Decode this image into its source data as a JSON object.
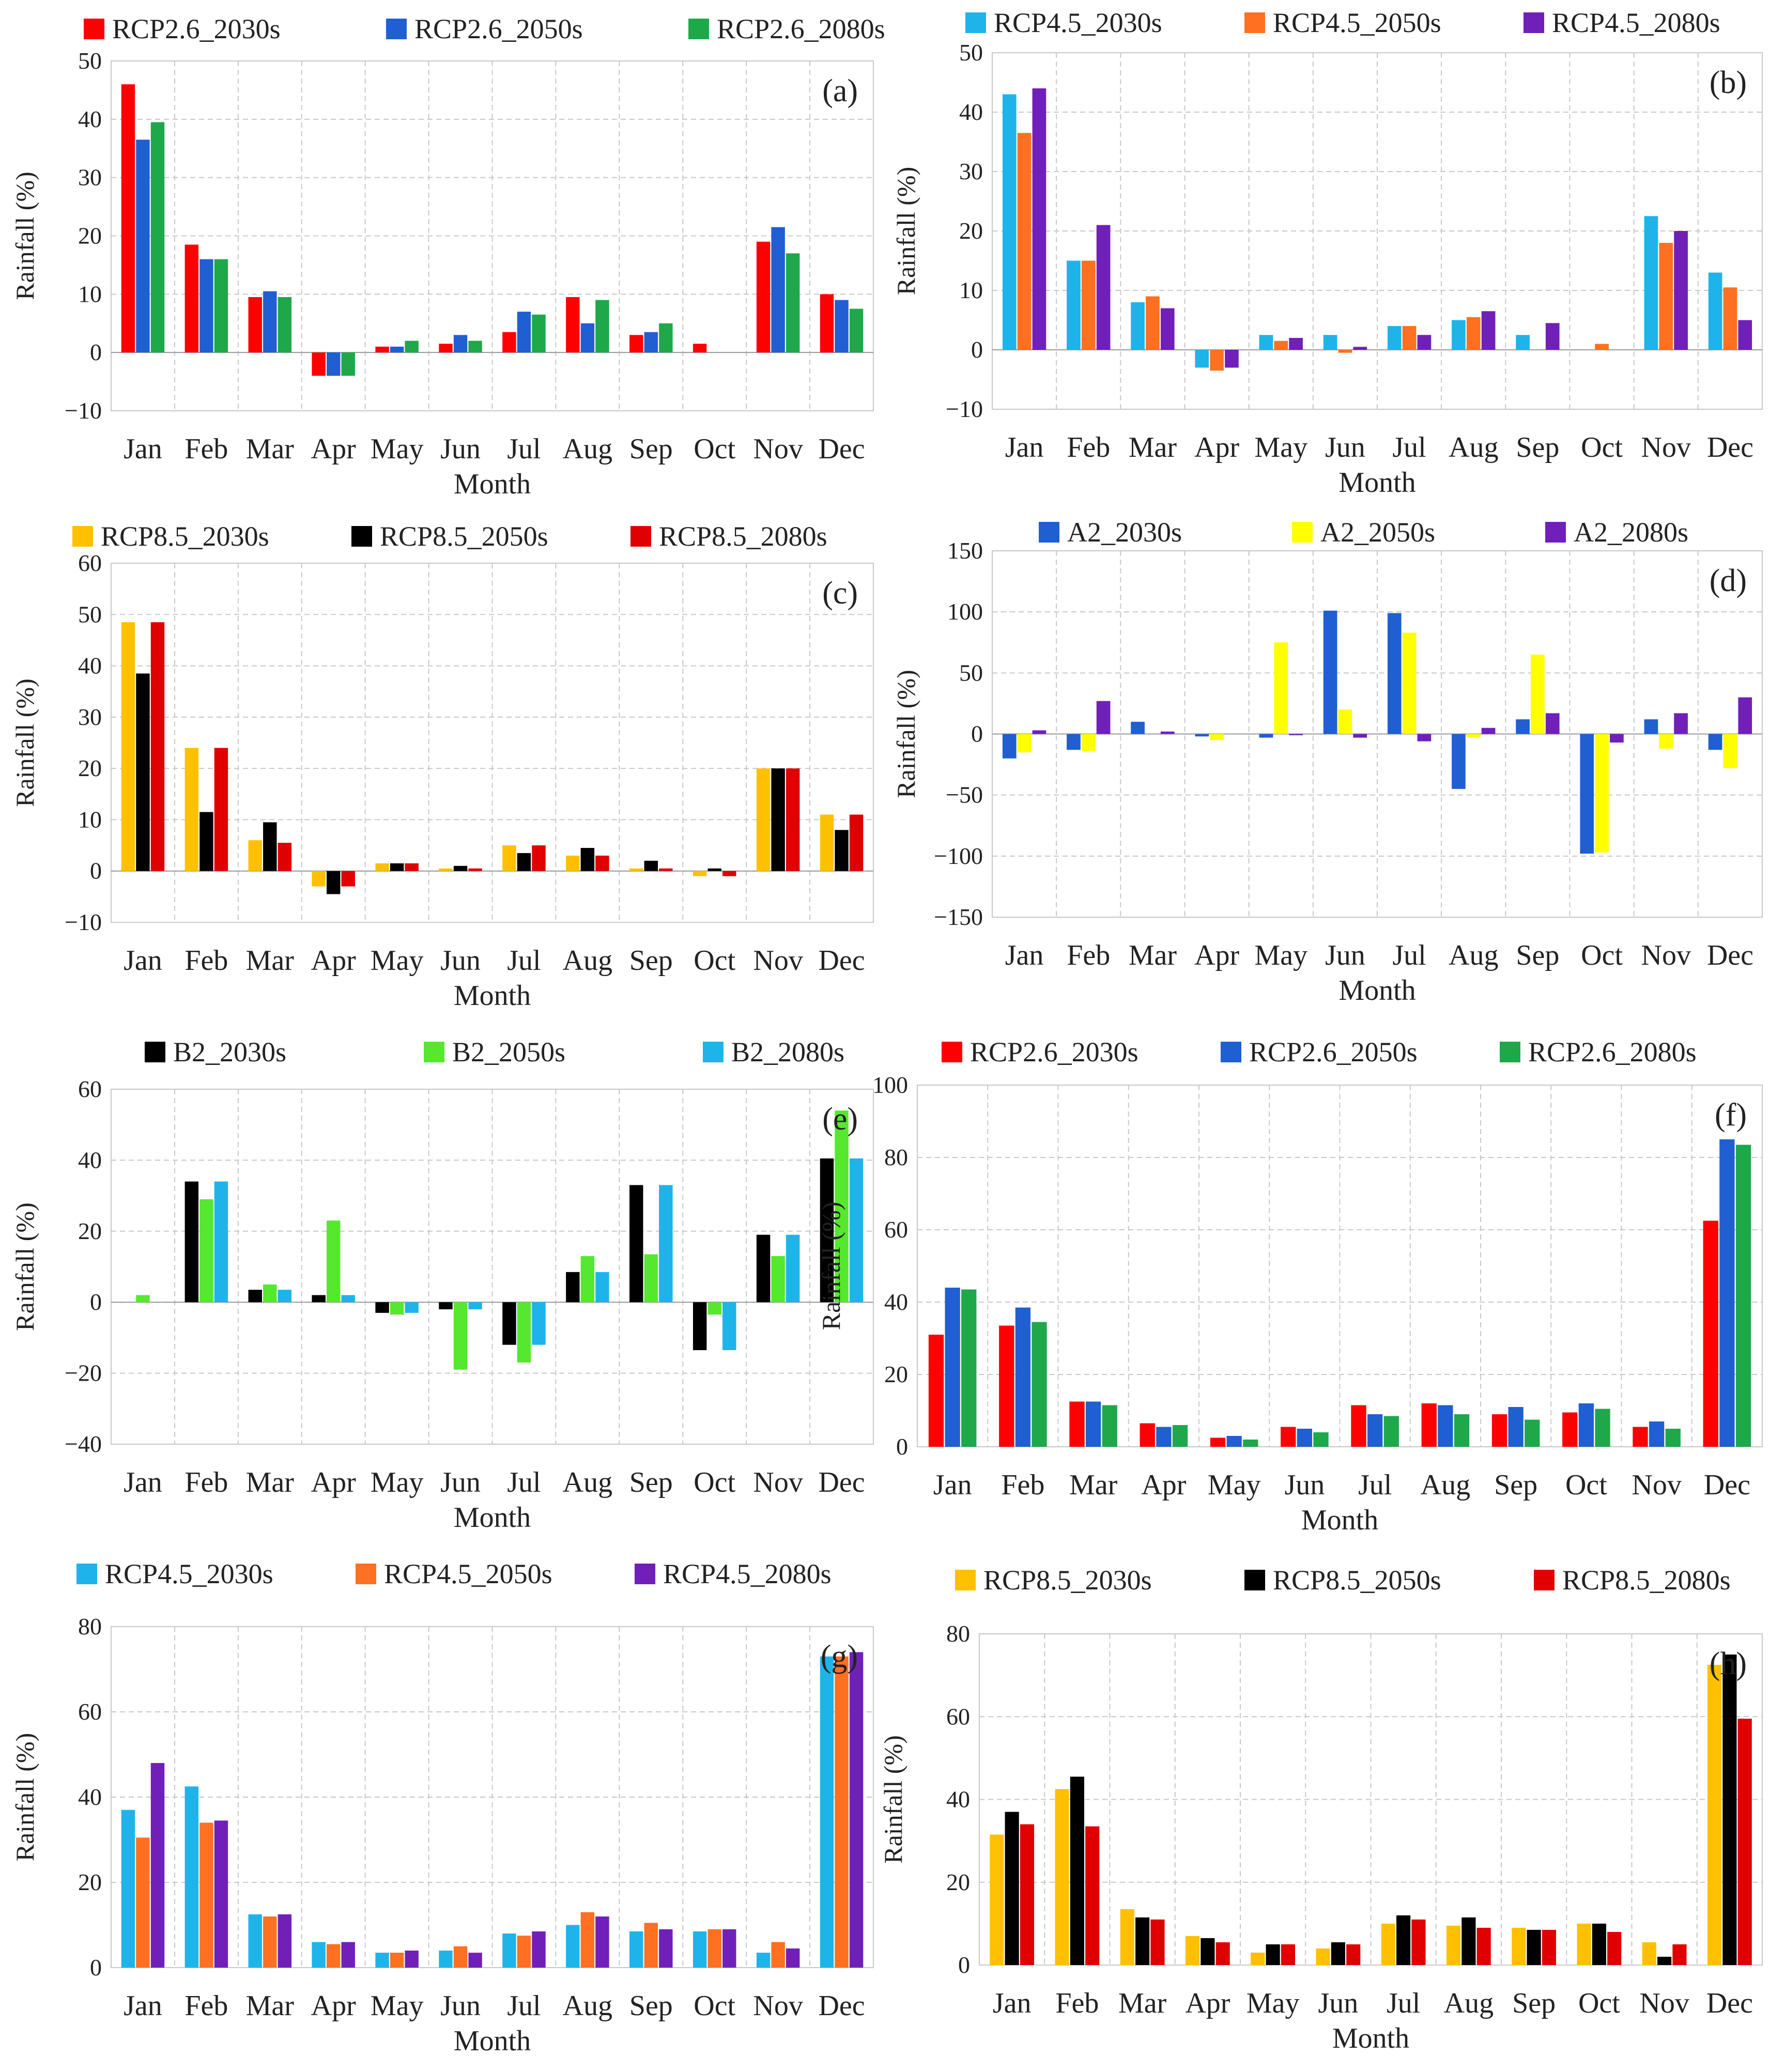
{
  "figure": {
    "x_label": "Month",
    "y_label": "Rainfall (%)"
  },
  "chart_data": [
    {
      "type": "bar",
      "panel": "(a)",
      "categories": [
        "Jan",
        "Feb",
        "Mar",
        "Apr",
        "May",
        "Jun",
        "Jul",
        "Aug",
        "Sep",
        "Oct",
        "Nov",
        "Dec"
      ],
      "ylim": [
        -10,
        50
      ],
      "yticks": [
        -10,
        0,
        10,
        20,
        30,
        40,
        50
      ],
      "ytick_labels": [
        "−10",
        "0",
        "10",
        "20",
        "30",
        "40",
        "50"
      ],
      "xlabel": "Month",
      "ylabel": "Rainfall (%)",
      "grid": true,
      "legend": "top",
      "series": [
        {
          "name": "RCP2.6_2030s",
          "color": "#ff0000",
          "values": [
            46,
            18.5,
            9.5,
            -4,
            1,
            1.5,
            3.5,
            9.5,
            3,
            1.5,
            19,
            10
          ]
        },
        {
          "name": "RCP2.6_2050s",
          "color": "#1f5fd1",
          "values": [
            36.5,
            16,
            10.5,
            -4,
            1,
            3,
            7,
            5,
            3.5,
            0,
            21.5,
            9
          ]
        },
        {
          "name": "RCP2.6_2080s",
          "color": "#1ea84a",
          "values": [
            39.5,
            16,
            9.5,
            -4,
            2,
            2,
            6.5,
            9,
            5,
            0,
            17,
            7.5
          ]
        }
      ]
    },
    {
      "type": "bar",
      "panel": "(b)",
      "categories": [
        "Jan",
        "Feb",
        "Mar",
        "Apr",
        "May",
        "Jun",
        "Jul",
        "Aug",
        "Sep",
        "Oct",
        "Nov",
        "Dec"
      ],
      "ylim": [
        -10,
        50
      ],
      "yticks": [
        -10,
        0,
        10,
        20,
        30,
        40,
        50
      ],
      "ytick_labels": [
        "−10",
        "0",
        "10",
        "20",
        "30",
        "40",
        "50"
      ],
      "xlabel": "Month",
      "ylabel": "Rainfall (%)",
      "grid": true,
      "legend": "top",
      "series": [
        {
          "name": "RCP4.5_2030s",
          "color": "#1eb4ea",
          "values": [
            43,
            15,
            8,
            -3,
            2.5,
            2.5,
            4,
            5,
            2.5,
            0,
            22.5,
            13
          ]
        },
        {
          "name": "RCP4.5_2050s",
          "color": "#ff7020",
          "values": [
            36.5,
            15,
            9,
            -3.5,
            1.5,
            -0.5,
            4,
            5.5,
            0,
            1,
            18,
            10.5
          ]
        },
        {
          "name": "RCP4.5_2080s",
          "color": "#7020b8",
          "values": [
            44,
            21,
            7,
            -3,
            2,
            0.5,
            2.5,
            6.5,
            4.5,
            0,
            20,
            5
          ]
        }
      ]
    },
    {
      "type": "bar",
      "panel": "(c)",
      "categories": [
        "Jan",
        "Feb",
        "Mar",
        "Apr",
        "May",
        "Jun",
        "Jul",
        "Aug",
        "Sep",
        "Oct",
        "Nov",
        "Dec"
      ],
      "ylim": [
        -10,
        60
      ],
      "yticks": [
        -10,
        0,
        10,
        20,
        30,
        40,
        50,
        60
      ],
      "ytick_labels": [
        "−10",
        "0",
        "10",
        "20",
        "30",
        "40",
        "50",
        "60"
      ],
      "xlabel": "Month",
      "ylabel": "Rainfall (%)",
      "grid": true,
      "legend": "top",
      "series": [
        {
          "name": "RCP8.5_2030s",
          "color": "#ffc000",
          "values": [
            48.5,
            24,
            6,
            -3,
            1.5,
            0.5,
            5,
            3,
            0.5,
            -1,
            20,
            11
          ]
        },
        {
          "name": "RCP8.5_2050s",
          "color": "#000000",
          "values": [
            38.5,
            11.5,
            9.5,
            -4.5,
            1.5,
            1,
            3.5,
            4.5,
            2,
            0.5,
            20,
            8
          ]
        },
        {
          "name": "RCP8.5_2080s",
          "color": "#e00000",
          "values": [
            48.5,
            24,
            5.5,
            -3,
            1.5,
            0.5,
            5,
            3,
            0.5,
            -1,
            20,
            11
          ]
        }
      ]
    },
    {
      "type": "bar",
      "panel": "(d)",
      "categories": [
        "Jan",
        "Feb",
        "Mar",
        "Apr",
        "May",
        "Jun",
        "Jul",
        "Aug",
        "Sep",
        "Oct",
        "Nov",
        "Dec"
      ],
      "ylim": [
        -150,
        150
      ],
      "yticks": [
        -150,
        -100,
        -50,
        0,
        50,
        100,
        150
      ],
      "ytick_labels": [
        "−150",
        "−100",
        "−50",
        "0",
        "50",
        "100",
        "150"
      ],
      "xlabel": "Month",
      "ylabel": "Rainfall (%)",
      "grid": true,
      "legend": "top",
      "series": [
        {
          "name": "A2_2030s",
          "color": "#1f5fd1",
          "values": [
            -20,
            -13,
            10,
            -2,
            -3,
            101,
            99,
            -45,
            12,
            -98,
            12,
            -13
          ]
        },
        {
          "name": "A2_2050s",
          "color": "#ffff00",
          "values": [
            -15,
            -14,
            0,
            -5,
            75,
            20,
            83,
            -3,
            65,
            -97,
            -12,
            -28
          ]
        },
        {
          "name": "A2_2080s",
          "color": "#7020b8",
          "values": [
            3,
            27,
            2,
            0,
            -1,
            -3,
            -6,
            5,
            17,
            -7,
            17,
            30
          ]
        }
      ]
    },
    {
      "type": "bar",
      "panel": "(e)",
      "categories": [
        "Jan",
        "Feb",
        "Mar",
        "Apr",
        "May",
        "Jun",
        "Jul",
        "Aug",
        "Sep",
        "Oct",
        "Nov",
        "Dec"
      ],
      "ylim": [
        -40,
        60
      ],
      "yticks": [
        -40,
        -20,
        0,
        20,
        40,
        60
      ],
      "ytick_labels": [
        "−40",
        "−20",
        "0",
        "20",
        "40",
        "60"
      ],
      "xlabel": "Month",
      "ylabel": "Rainfall (%)",
      "grid": true,
      "legend": "top",
      "series": [
        {
          "name": "B2_2030s",
          "color": "#000000",
          "values": [
            0,
            34,
            3.5,
            2,
            -3,
            -2,
            -12,
            8.5,
            33,
            -13.5,
            19,
            40.5
          ]
        },
        {
          "name": "B2_2050s",
          "color": "#55e82e",
          "values": [
            2,
            29,
            5,
            23,
            -3.5,
            -19,
            -17,
            13,
            13.5,
            -3.5,
            13,
            54
          ]
        },
        {
          "name": "B2_2080s",
          "color": "#1eb4ea",
          "values": [
            0,
            34,
            3.5,
            2,
            -3,
            -2,
            -12,
            8.5,
            33,
            -13.5,
            19,
            40.5
          ]
        }
      ]
    },
    {
      "type": "bar",
      "panel": "(f)",
      "categories": [
        "Jan",
        "Feb",
        "Mar",
        "Apr",
        "May",
        "Jun",
        "Jul",
        "Aug",
        "Sep",
        "Oct",
        "Nov",
        "Dec"
      ],
      "ylim": [
        0,
        100
      ],
      "yticks": [
        0,
        20,
        40,
        60,
        80,
        100
      ],
      "ytick_labels": [
        "0",
        "20",
        "40",
        "60",
        "80",
        "100"
      ],
      "xlabel": "Month",
      "ylabel": "Rainfall (%)",
      "grid": true,
      "legend": "top",
      "series": [
        {
          "name": "RCP2.6_2030s",
          "color": "#ff0000",
          "values": [
            31,
            33.5,
            12.5,
            6.5,
            2.5,
            5.5,
            11.5,
            12,
            9,
            9.5,
            5.5,
            62.5
          ]
        },
        {
          "name": "RCP2.6_2050s",
          "color": "#1f5fd1",
          "values": [
            44,
            38.5,
            12.5,
            5.5,
            3,
            5,
            9,
            11.5,
            11,
            12,
            7,
            85
          ]
        },
        {
          "name": "RCP2.6_2080s",
          "color": "#1ea84a",
          "values": [
            43.5,
            34.5,
            11.5,
            6,
            2,
            4,
            8.5,
            9,
            7.5,
            10.5,
            5,
            83.5
          ]
        }
      ]
    },
    {
      "type": "bar",
      "panel": "(g)",
      "categories": [
        "Jan",
        "Feb",
        "Mar",
        "Apr",
        "May",
        "Jun",
        "Jul",
        "Aug",
        "Sep",
        "Oct",
        "Nov",
        "Dec"
      ],
      "ylim": [
        0,
        80
      ],
      "yticks": [
        0,
        20,
        40,
        60,
        80
      ],
      "ytick_labels": [
        "0",
        "20",
        "40",
        "60",
        "80"
      ],
      "xlabel": "Month",
      "ylabel": "Rainfall (%)",
      "grid": true,
      "legend": "top",
      "series": [
        {
          "name": "RCP4.5_2030s",
          "color": "#1eb4ea",
          "values": [
            37,
            42.5,
            12.5,
            6,
            3.5,
            4,
            8,
            10,
            8.5,
            8.5,
            3.5,
            73
          ]
        },
        {
          "name": "RCP4.5_2050s",
          "color": "#ff7020",
          "values": [
            30.5,
            34,
            12,
            5.5,
            3.5,
            5,
            7.5,
            13,
            10.5,
            9,
            6,
            73
          ]
        },
        {
          "name": "RCP4.5_2080s",
          "color": "#7020b8",
          "values": [
            48,
            34.5,
            12.5,
            6,
            4,
            3.5,
            8.5,
            12,
            9,
            9,
            4.5,
            74
          ]
        }
      ]
    },
    {
      "type": "bar",
      "panel": "(h)",
      "categories": [
        "Jan",
        "Feb",
        "Mar",
        "Apr",
        "May",
        "Jun",
        "Jul",
        "Aug",
        "Sep",
        "Oct",
        "Nov",
        "Dec"
      ],
      "ylim": [
        0,
        80
      ],
      "yticks": [
        0,
        20,
        40,
        60,
        80
      ],
      "ytick_labels": [
        "0",
        "20",
        "40",
        "60",
        "80"
      ],
      "xlabel": "Month",
      "ylabel": "Rainfall (%)",
      "grid": true,
      "legend": "top",
      "series": [
        {
          "name": "RCP8.5_2030s",
          "color": "#ffc000",
          "values": [
            31.5,
            42.5,
            13.5,
            7,
            3,
            4,
            10,
            9.5,
            9,
            10,
            5.5,
            72.5
          ]
        },
        {
          "name": "RCP8.5_2050s",
          "color": "#000000",
          "values": [
            37,
            45.5,
            11.5,
            6.5,
            5,
            5.5,
            12,
            11.5,
            8.5,
            10,
            2,
            75
          ]
        },
        {
          "name": "RCP8.5_2080s",
          "color": "#e00000",
          "values": [
            34,
            33.5,
            11,
            5.5,
            5,
            5,
            11,
            9,
            8.5,
            8,
            5,
            59.5
          ]
        }
      ]
    }
  ]
}
